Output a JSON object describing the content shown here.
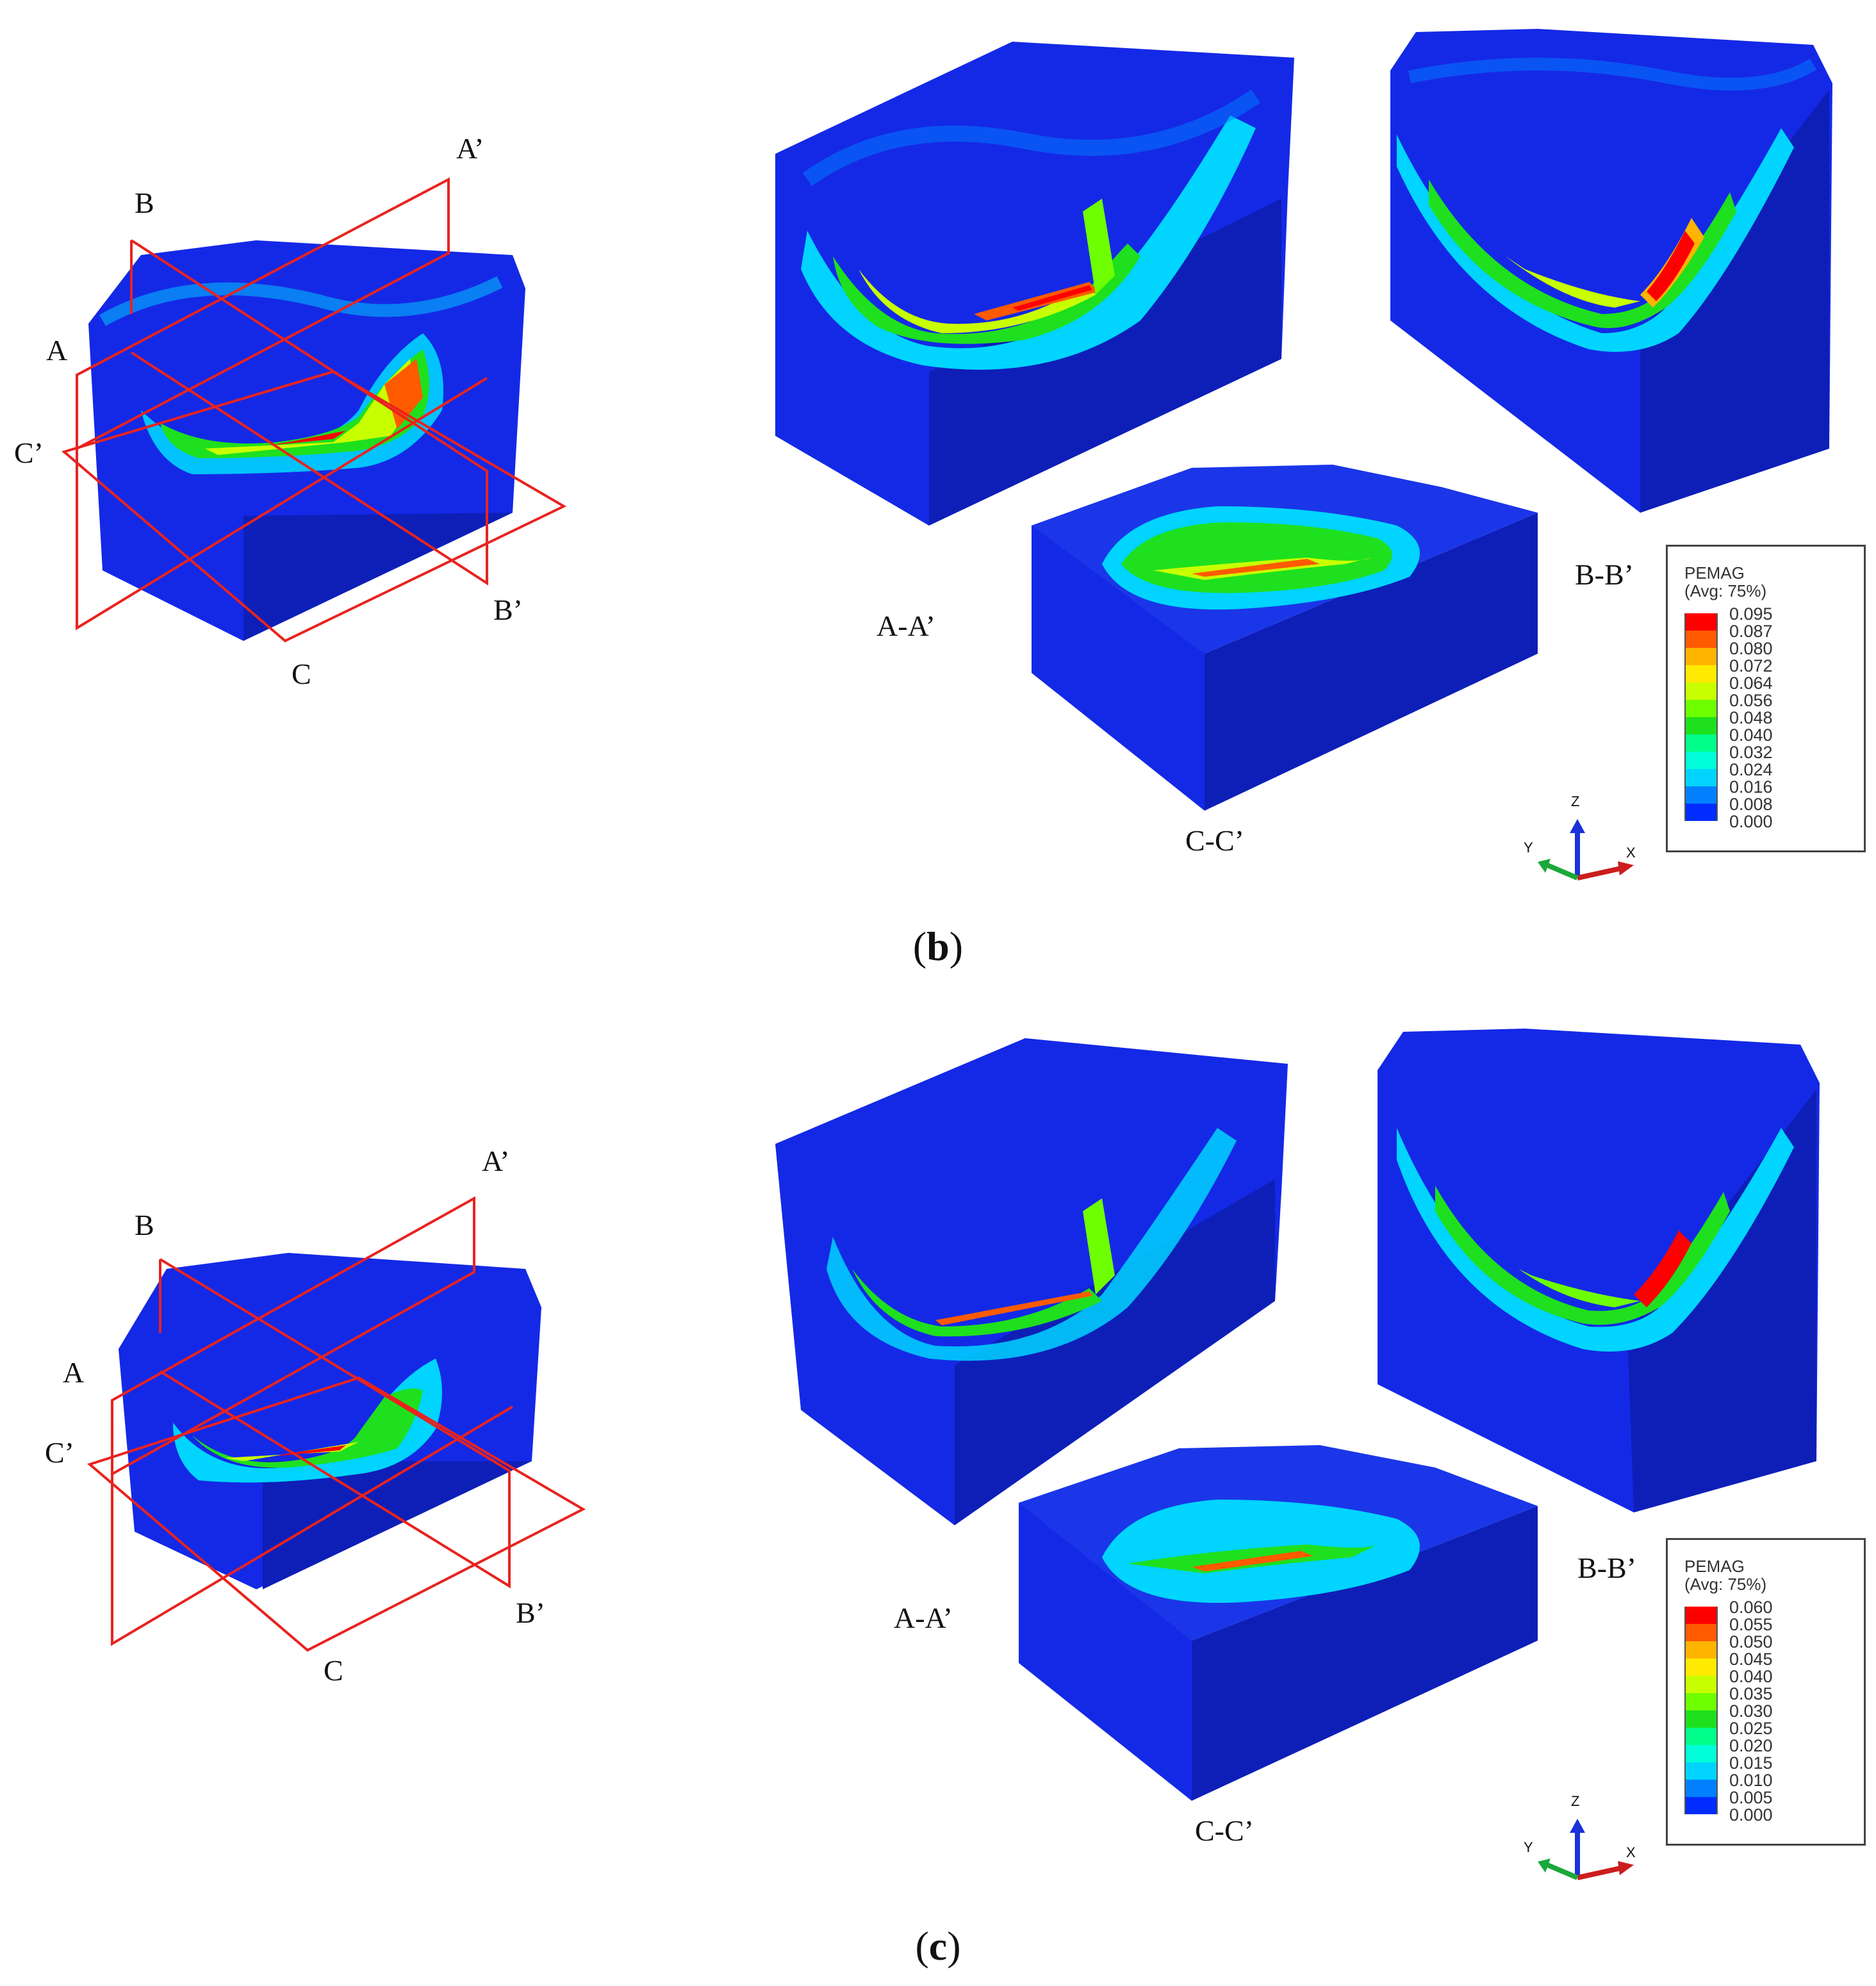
{
  "panels": [
    {
      "id": "b",
      "caption_letter": "b",
      "plane_labels": {
        "A": "A",
        "A_prime": "A’",
        "B": "B",
        "B_prime": "B’",
        "C": "C",
        "C_prime": "C’"
      },
      "section_labels": {
        "aa": "A-A’",
        "bb": "B-B’",
        "cc": "C-C’"
      },
      "legend": {
        "title": "PEMAG",
        "subtitle": "(Avg: 75%)",
        "values": [
          "0.095",
          "0.087",
          "0.080",
          "0.072",
          "0.064",
          "0.056",
          "0.048",
          "0.040",
          "0.032",
          "0.024",
          "0.016",
          "0.008",
          "0.000"
        ]
      },
      "axes": {
        "z": "Z",
        "y": "Y",
        "x": "X"
      }
    },
    {
      "id": "c",
      "caption_letter": "c",
      "plane_labels": {
        "A": "A",
        "A_prime": "A’",
        "B": "B",
        "B_prime": "B’",
        "C": "C",
        "C_prime": "C’"
      },
      "section_labels": {
        "aa": "A-A’",
        "bb": "B-B’",
        "cc": "C-C’"
      },
      "legend": {
        "title": "PEMAG",
        "subtitle": "(Avg: 75%)",
        "values": [
          "0.060",
          "0.055",
          "0.050",
          "0.045",
          "0.040",
          "0.035",
          "0.030",
          "0.025",
          "0.020",
          "0.015",
          "0.010",
          "0.005",
          "0.000"
        ]
      },
      "axes": {
        "z": "Z",
        "y": "Y",
        "x": "X"
      }
    }
  ],
  "colors": {
    "contour_scale": [
      "#ff0000",
      "#ff5a00",
      "#ffb400",
      "#ffea00",
      "#c8ff00",
      "#6eff00",
      "#1ee01e",
      "#00ff8a",
      "#00ffd8",
      "#00d4ff",
      "#0080ff",
      "#002cff",
      "#0000ff"
    ],
    "block_face": "#1429e6",
    "block_side": "#0e1fb8",
    "block_top": "#1a36e8",
    "plane_outline": "#e8231f",
    "axis_x": "#cc1d1d",
    "axis_y": "#1aa83a",
    "axis_z": "#1a32d8"
  }
}
